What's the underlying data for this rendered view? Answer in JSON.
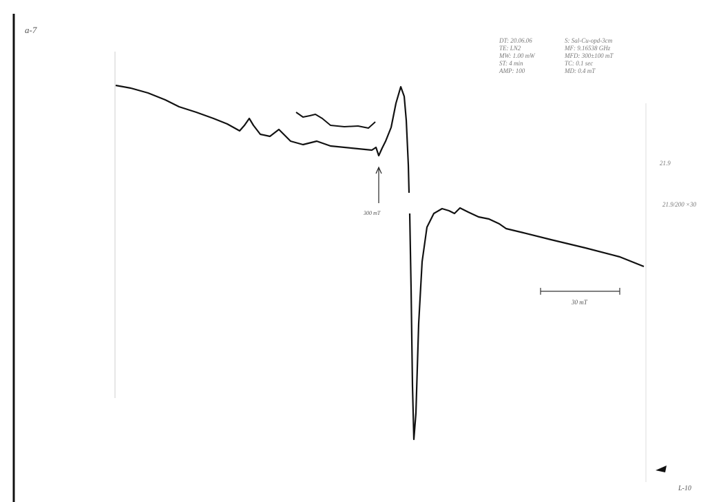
{
  "sample_id": "a-7",
  "header": {
    "left": [
      "DT: 20.06.06",
      "TE: LN2",
      "MW: 1.00 mW",
      "ST: 4 min",
      "AMP: 100"
    ],
    "right": [
      "S: Sal-Cu-opd-3cm",
      "MF: 9.16538 GHz",
      "MFD: 300±100 mT",
      "TC: 0.1 sec",
      "MD: 0.4 mT"
    ]
  },
  "notes": {
    "gain": "21.9",
    "gain_ratio": "21.9/200 ×30",
    "field_marker": "300 mT",
    "scale_bar": "30 mT",
    "page": "L-10"
  }
}
